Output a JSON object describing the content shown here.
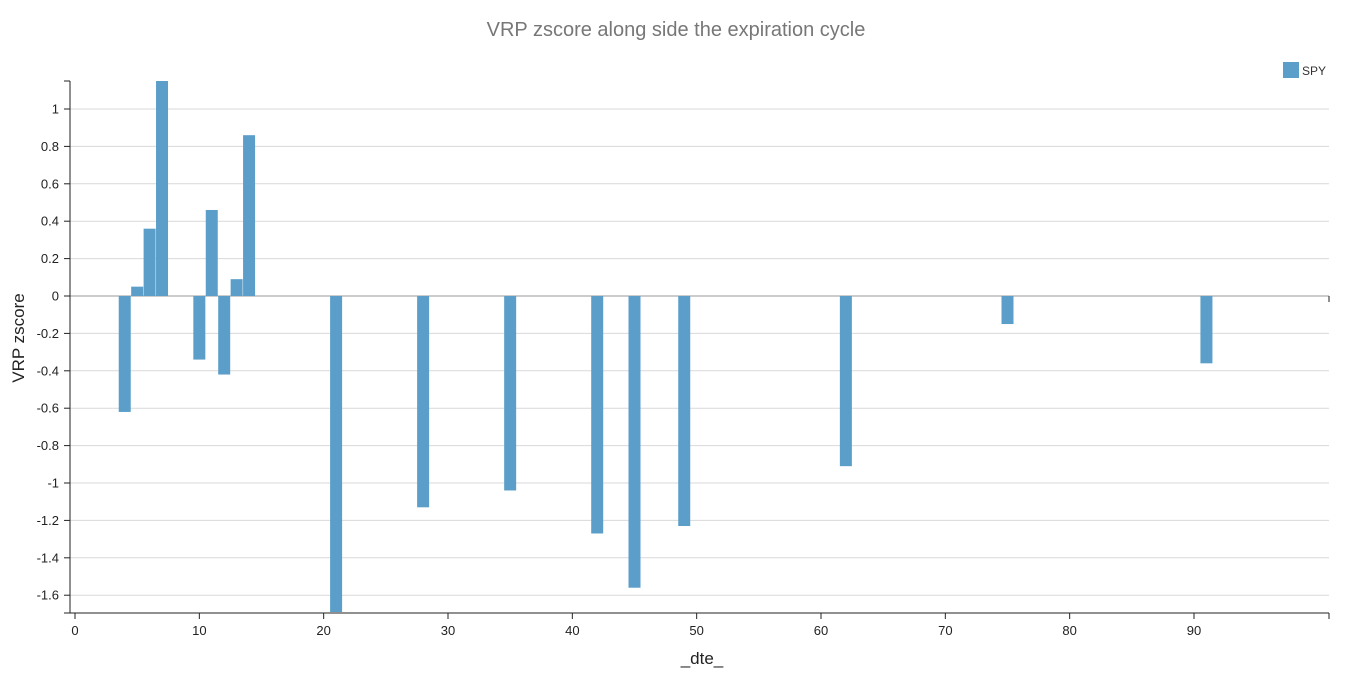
{
  "chart_data": {
    "type": "bar",
    "title": "VRP zscore along side the expiration cycle",
    "xlabel": "_dte_",
    "ylabel": "VRP zscore",
    "xlim": [
      0,
      95
    ],
    "ylim": [
      -1.68,
      1.16
    ],
    "x_ticks": [
      0,
      10,
      20,
      30,
      40,
      50,
      60,
      70,
      80,
      90
    ],
    "y_ticks": [
      1,
      0.8,
      0.6,
      0.4,
      0.2,
      0,
      -0.2,
      -0.4,
      -0.6,
      -0.8,
      -1,
      -1.2,
      -1.4,
      -1.6
    ],
    "x_tick_labels": [
      "0",
      "10",
      "20",
      "30",
      "40",
      "50",
      "60",
      "70",
      "80",
      "90"
    ],
    "y_tick_labels": [
      "1",
      "0.8",
      "0.6",
      "0.4",
      "0.2",
      "0",
      "-0.2",
      "-0.4",
      "-0.6",
      "-0.8",
      "-1",
      "-1.2",
      "-1.4",
      "-1.6"
    ],
    "grid": true,
    "legend_position": "top-right",
    "series": [
      {
        "name": "SPY",
        "color": "#5b9ec9",
        "points": [
          {
            "x": 4,
            "y": -0.62
          },
          {
            "x": 5,
            "y": 0.05
          },
          {
            "x": 6,
            "y": 0.36
          },
          {
            "x": 7,
            "y": 1.16
          },
          {
            "x": 10,
            "y": -0.34
          },
          {
            "x": 11,
            "y": 0.46
          },
          {
            "x": 12,
            "y": -0.42
          },
          {
            "x": 13,
            "y": 0.09
          },
          {
            "x": 14,
            "y": 0.86
          },
          {
            "x": 21,
            "y": -1.69
          },
          {
            "x": 28,
            "y": -1.13
          },
          {
            "x": 35,
            "y": -1.04
          },
          {
            "x": 42,
            "y": -1.27
          },
          {
            "x": 45,
            "y": -1.56
          },
          {
            "x": 49,
            "y": -1.23
          },
          {
            "x": 62,
            "y": -0.91
          },
          {
            "x": 75,
            "y": -0.15
          },
          {
            "x": 91,
            "y": -0.36
          }
        ]
      }
    ]
  }
}
